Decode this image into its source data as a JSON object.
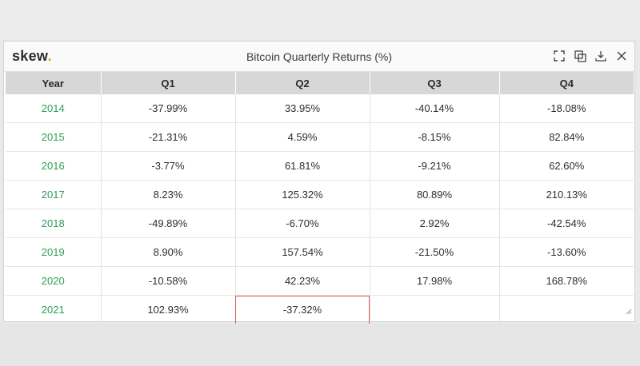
{
  "widget": {
    "logo_text": "skew",
    "logo_dot": ".",
    "title": "Bitcoin Quarterly Returns (%)",
    "icons": [
      "fullscreen-icon",
      "duplicate-icon",
      "download-icon",
      "close-icon"
    ]
  },
  "table": {
    "headers": [
      "Year",
      "Q1",
      "Q2",
      "Q3",
      "Q4"
    ],
    "rows": [
      [
        "2014",
        "-37.99%",
        "33.95%",
        "-40.14%",
        "-18.08%"
      ],
      [
        "2015",
        "-21.31%",
        "4.59%",
        "-8.15%",
        "82.84%"
      ],
      [
        "2016",
        "-3.77%",
        "61.81%",
        "-9.21%",
        "62.60%"
      ],
      [
        "2017",
        "8.23%",
        "125.32%",
        "80.89%",
        "210.13%"
      ],
      [
        "2018",
        "-49.89%",
        "-6.70%",
        "2.92%",
        "-42.54%"
      ],
      [
        "2019",
        "8.90%",
        "157.54%",
        "-21.50%",
        "-13.60%"
      ],
      [
        "2020",
        "-10.58%",
        "42.23%",
        "17.98%",
        "168.78%"
      ],
      [
        "2021",
        "102.93%",
        "-37.32%",
        "",
        ""
      ]
    ]
  },
  "colors": {
    "year_text": "#2e9d58",
    "logo_dot": "#e0a400",
    "header_bg": "#d7d7d7",
    "highlight_border": "#d75a5a"
  }
}
